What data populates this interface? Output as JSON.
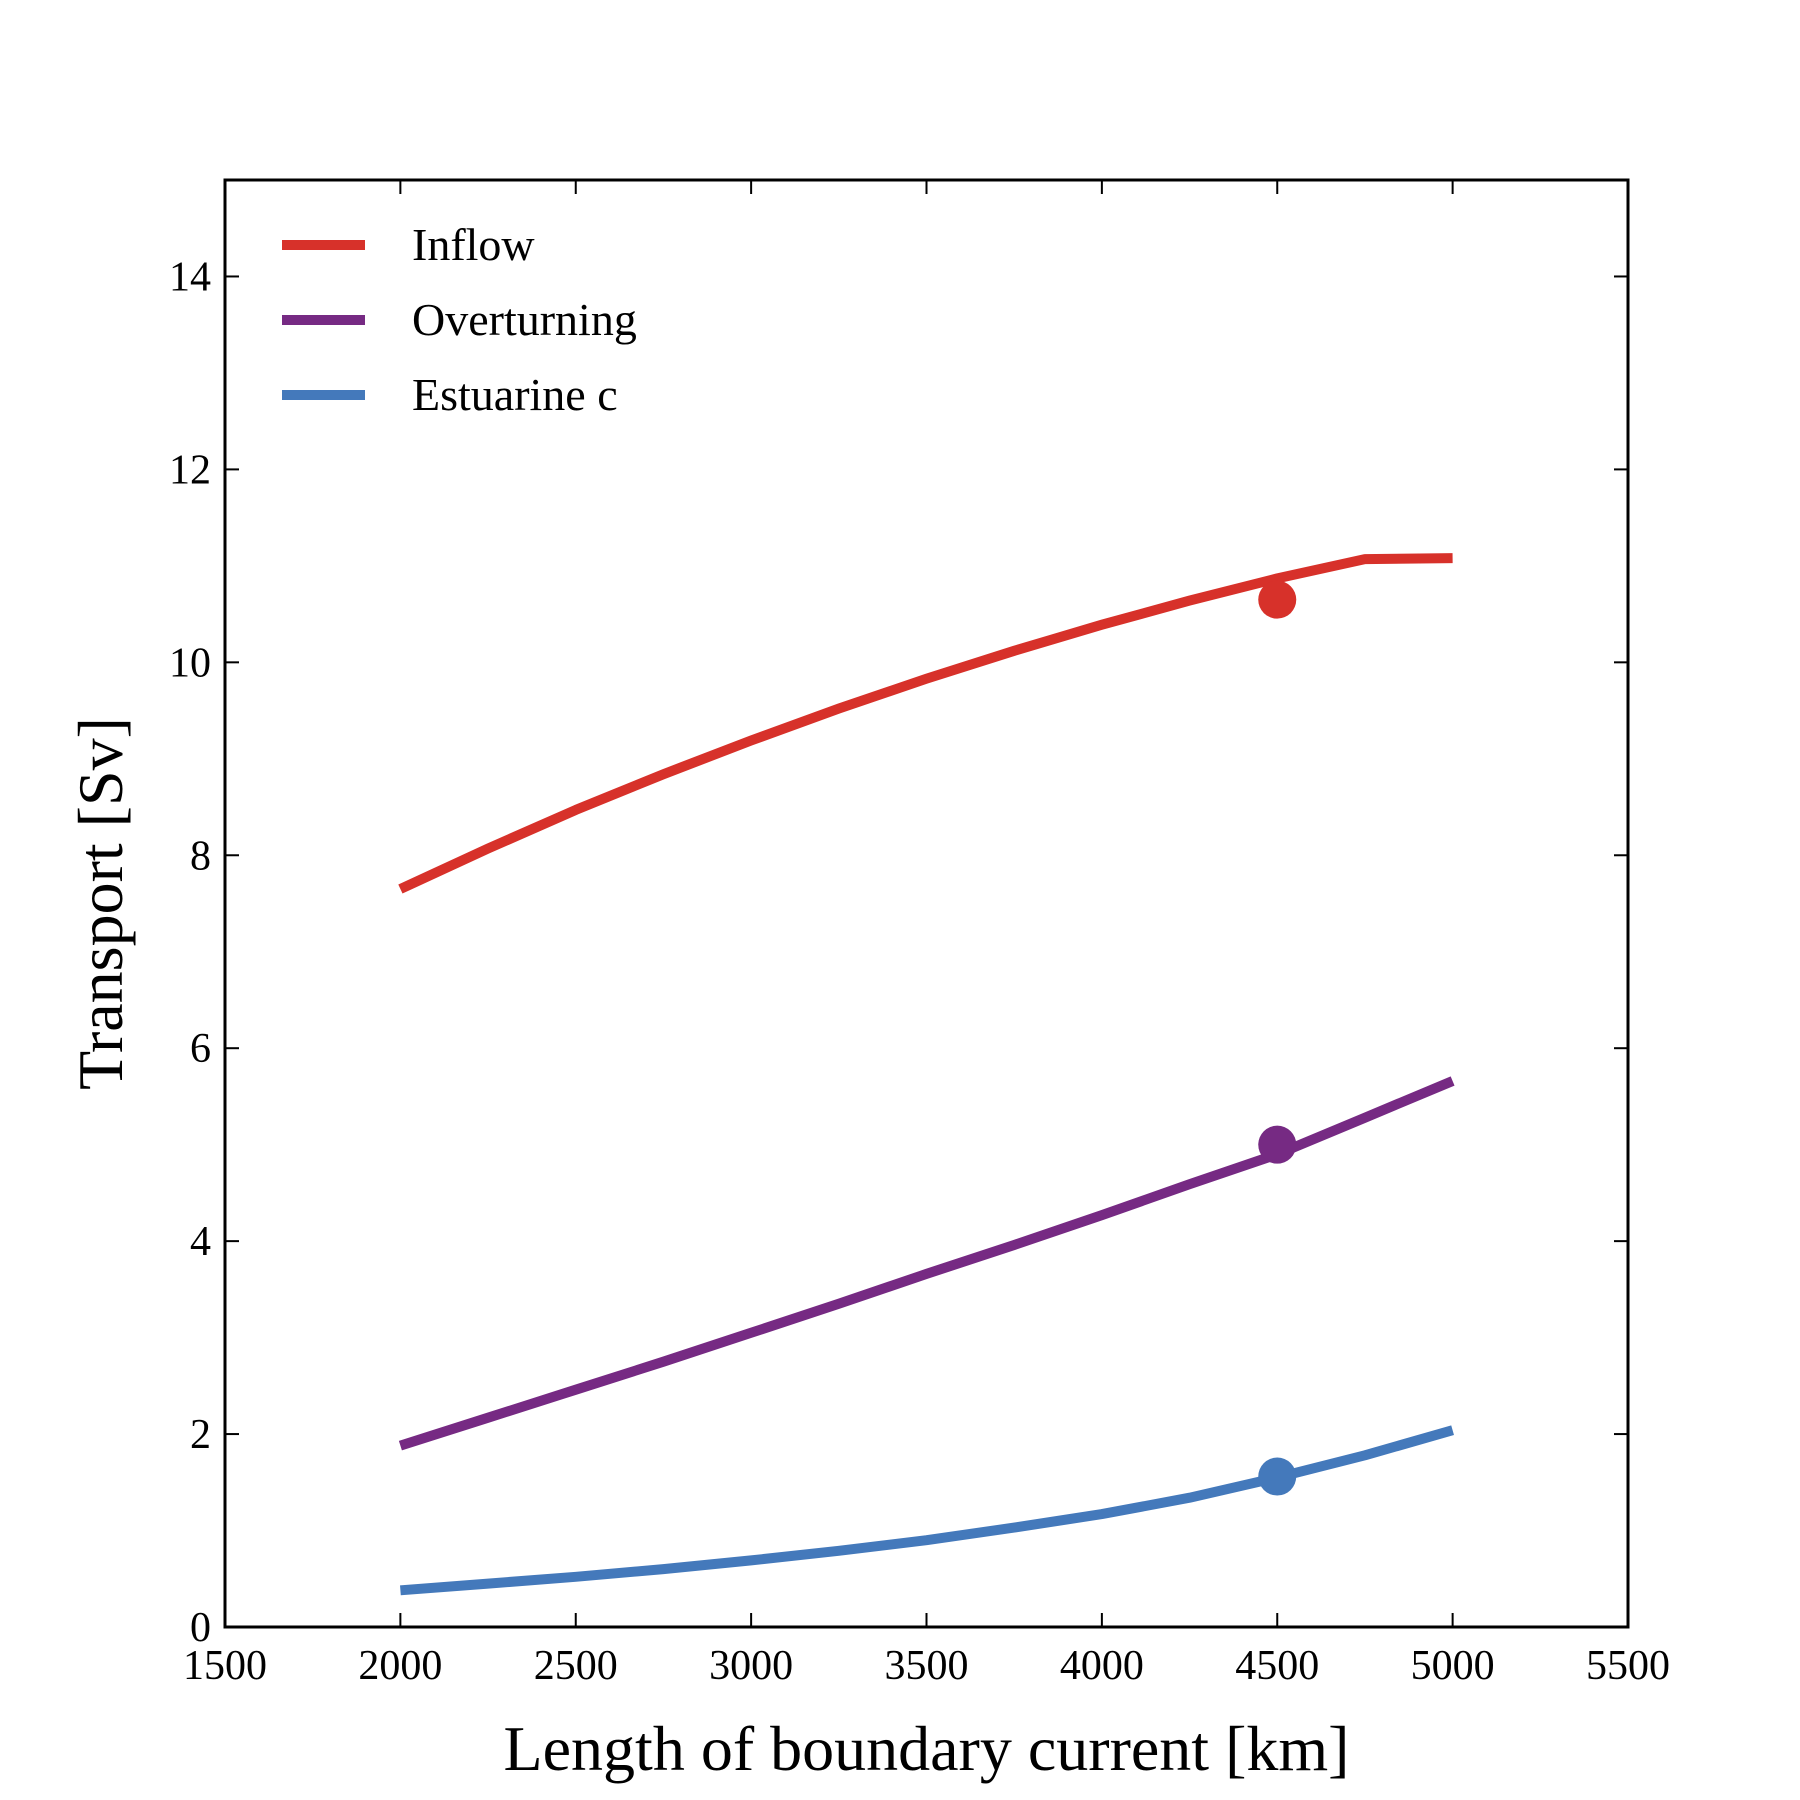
{
  "chart_data": {
    "type": "line",
    "title": "",
    "xlabel": "Length of boundary current [km]",
    "ylabel": "Transport [Sv]",
    "xlim": [
      1500,
      5500
    ],
    "ylim": [
      0,
      15
    ],
    "xticks": [
      1500,
      2000,
      2500,
      3000,
      3500,
      4000,
      4500,
      5000,
      5500
    ],
    "yticks": [
      0,
      2,
      4,
      6,
      8,
      10,
      12,
      14
    ],
    "grid": false,
    "legend_position": "top-left",
    "series": [
      {
        "name": "Inflow",
        "color": "#d7312a",
        "x": [
          2000,
          2250,
          2500,
          2750,
          3000,
          3250,
          3500,
          3750,
          4000,
          4250,
          4500,
          4750,
          5000
        ],
        "y": [
          7.65,
          8.07,
          8.47,
          8.84,
          9.19,
          9.52,
          9.83,
          10.12,
          10.39,
          10.64,
          10.87,
          11.07,
          11.08
        ],
        "marker": {
          "x": 4500,
          "y": 10.65
        }
      },
      {
        "name": "Overturning",
        "color": "#762a83",
        "x": [
          2000,
          2250,
          2500,
          2750,
          3000,
          3250,
          3500,
          3750,
          4000,
          4250,
          4500,
          4750,
          5000
        ],
        "y": [
          1.88,
          2.17,
          2.46,
          2.75,
          3.05,
          3.35,
          3.66,
          3.96,
          4.27,
          4.59,
          4.9,
          5.28,
          5.66
        ],
        "marker": {
          "x": 4500,
          "y": 5.0
        }
      },
      {
        "name": "Estuarine c",
        "color": "#4479bb",
        "x": [
          2000,
          2250,
          2500,
          2750,
          3000,
          3250,
          3500,
          3750,
          4000,
          4250,
          4500,
          4750,
          5000
        ],
        "y": [
          0.38,
          0.45,
          0.52,
          0.6,
          0.69,
          0.79,
          0.9,
          1.03,
          1.17,
          1.34,
          1.55,
          1.78,
          2.04
        ],
        "marker": {
          "x": 4500,
          "y": 1.56
        }
      }
    ]
  }
}
